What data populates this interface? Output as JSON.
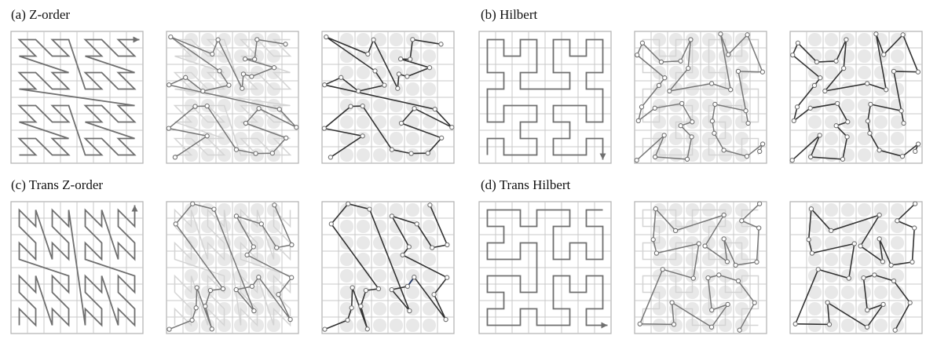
{
  "panels": [
    {
      "id": "a",
      "label": "(a) Z-order",
      "curve": "zorder"
    },
    {
      "id": "b",
      "label": "(b) Hilbert",
      "curve": "hilbert"
    },
    {
      "id": "c",
      "label": "(c) Trans Z-order",
      "curve": "transzorder"
    },
    {
      "id": "d",
      "label": "(d) Trans Hilbert",
      "curve": "transhilbert"
    }
  ],
  "grid_size": 8,
  "views": [
    "full-curve",
    "curve-with-sampled-points",
    "sampled-points-only"
  ],
  "colors": {
    "grid": "#c8c8c8",
    "grid_frame": "#b0b0b0",
    "curve": "#6f6f6f",
    "curve_faded": "#d4d4d4",
    "highlight": "#e6e6e6",
    "path_dark": "#333333",
    "path_mid": "#777777",
    "node_fill": "#ffffff",
    "node_stroke": "#707070",
    "accent_line": "#2b3f6b"
  }
}
